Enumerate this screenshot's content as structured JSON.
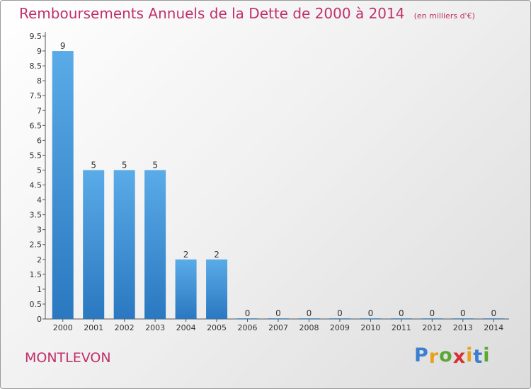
{
  "chart_data": {
    "type": "bar",
    "title": "Remboursements Annuels de la Dette de 2000 à 2014",
    "unit_note": "(en milliers d'€)",
    "categories": [
      "2000",
      "2001",
      "2002",
      "2003",
      "2004",
      "2005",
      "2006",
      "2007",
      "2008",
      "2009",
      "2010",
      "2011",
      "2012",
      "2013",
      "2014"
    ],
    "values": [
      9,
      5,
      5,
      5,
      2,
      2,
      0,
      0,
      0,
      0,
      0,
      0,
      0,
      0,
      0
    ],
    "data_labels": [
      "9",
      "5",
      "5",
      "5",
      "2",
      "2",
      "0",
      "0",
      "0",
      "0",
      "0",
      "0",
      "0",
      "0",
      "0"
    ],
    "y_ticks": [
      "0",
      "0.5",
      "1",
      "1.5",
      "2",
      "2.5",
      "3",
      "3.5",
      "4",
      "4.5",
      "5",
      "5.5",
      "6",
      "6.5",
      "7",
      "7.5",
      "8",
      "8.5",
      "9",
      "9.5"
    ],
    "ylim": [
      0,
      9.5
    ],
    "grid": false,
    "bar_color": "#3a8fd6"
  },
  "footer": {
    "commune": "MONTLEVON",
    "logo_letters": [
      "P",
      "r",
      "o",
      "x",
      "i",
      "t",
      "i"
    ],
    "logo_colors": [
      "#3a7fd0",
      "#e8a21a",
      "#5aa832",
      "#d63030",
      "#e8a21a",
      "#3a7fd0",
      "#5aa832"
    ]
  }
}
